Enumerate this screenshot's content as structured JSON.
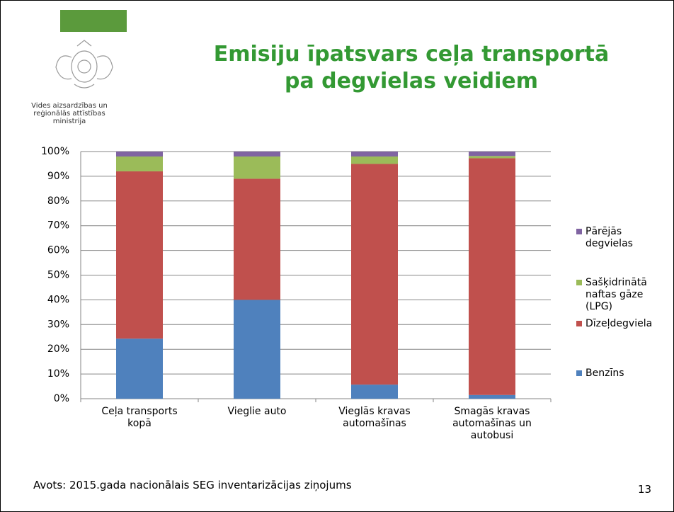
{
  "logo": {
    "lines": [
      "Vides aizsardzības un",
      "reģionālās attīstības",
      "ministrija"
    ]
  },
  "chart_data": {
    "type": "stacked_bar",
    "title": [
      "Emisiju īpatsvars ceļa transportā",
      "pa degvielas veidiem"
    ],
    "categories": [
      "Ceļa transports kopā",
      "Vieglie auto",
      "Vieglās kravas automašīnas",
      "Smagās kravas automašīnas un autobusi"
    ],
    "series": [
      {
        "name": "Benzīns",
        "color": "#4f81bd",
        "values": [
          24.3,
          40,
          5.7,
          1.5
        ]
      },
      {
        "name": "Dīzeļdegviela",
        "color": "#c0504d",
        "values": [
          67.7,
          49,
          89.3,
          95.8
        ]
      },
      {
        "name": "Sašķidrinātā naftas gāze (LPG)",
        "color": "#9bbb59",
        "values": [
          6,
          9,
          3,
          0.9
        ]
      },
      {
        "name": "Pārējās degvielas",
        "color": "#8064a2",
        "values": [
          2,
          2,
          2,
          1.8
        ]
      }
    ],
    "ylim": [
      0,
      100
    ],
    "yticks": [
      {
        "value": 0,
        "label": "0%"
      },
      {
        "value": 10,
        "label": "10%"
      },
      {
        "value": 20,
        "label": "20%"
      },
      {
        "value": 30,
        "label": "30%"
      },
      {
        "value": 40,
        "label": "40%"
      },
      {
        "value": 50,
        "label": "50%"
      },
      {
        "value": 60,
        "label": "60%"
      },
      {
        "value": 70,
        "label": "70%"
      },
      {
        "value": 80,
        "label": "80%"
      },
      {
        "value": 90,
        "label": "90%"
      },
      {
        "value": 100,
        "label": "100%"
      }
    ],
    "grid": true,
    "legend": "right"
  },
  "footer": {
    "source": "Avots: 2015.gada nacionālais SEG inventarizācijas ziņojums",
    "page": "13"
  }
}
